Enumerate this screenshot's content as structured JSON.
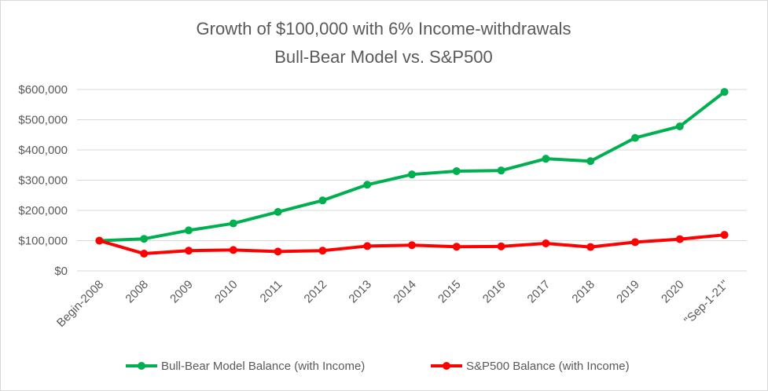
{
  "chart_data": {
    "type": "line",
    "title": "Growth of $100,000  with 6% Income-withdrawals",
    "subtitle": "Bull-Bear Model vs. S&P500",
    "categories": [
      "Begin-2008",
      "2008",
      "2009",
      "2010",
      "2011",
      "2012",
      "2013",
      "2014",
      "2015",
      "2016",
      "2017",
      "2018",
      "2019",
      "2020",
      "\"Sep-1-21\""
    ],
    "yticks": [
      "$0",
      "$100,000",
      "$200,000",
      "$300,000",
      "$400,000",
      "$500,000",
      "$600,000"
    ],
    "ylim": [
      0,
      600000
    ],
    "grid": true,
    "legend_position": "bottom",
    "series": [
      {
        "name": "Bull-Bear Model Balance (with Income)",
        "color": "#00b050",
        "values": [
          100000,
          106000,
          134000,
          157000,
          195000,
          233000,
          285000,
          319000,
          330000,
          332000,
          371000,
          363000,
          440000,
          478000,
          592000
        ]
      },
      {
        "name": "S&P500 Balance (with Income)",
        "color": "#ff0000",
        "values": [
          100000,
          57000,
          67000,
          69000,
          64000,
          67000,
          82000,
          85000,
          80000,
          81000,
          91000,
          79000,
          95000,
          105000,
          119000
        ]
      }
    ]
  }
}
